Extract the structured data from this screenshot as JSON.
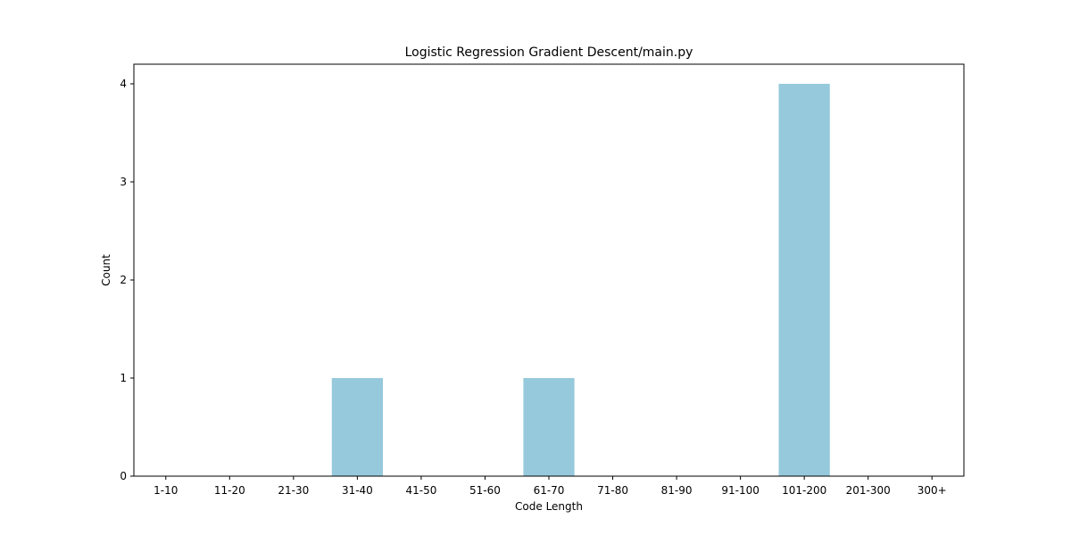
{
  "chart_data": {
    "type": "bar",
    "title": "Logistic Regression Gradient Descent/main.py",
    "xlabel": "Code Length",
    "ylabel": "Count",
    "categories": [
      "1-10",
      "11-20",
      "21-30",
      "31-40",
      "41-50",
      "51-60",
      "61-70",
      "71-80",
      "81-90",
      "91-100",
      "101-200",
      "201-300",
      "300+"
    ],
    "values": [
      0,
      0,
      0,
      1,
      0,
      0,
      1,
      0,
      0,
      0,
      4,
      0,
      0
    ],
    "yticks": [
      0,
      1,
      2,
      3,
      4
    ],
    "ylim": [
      0,
      4.2
    ],
    "grid": false,
    "bar_color": "#96c9dc"
  }
}
